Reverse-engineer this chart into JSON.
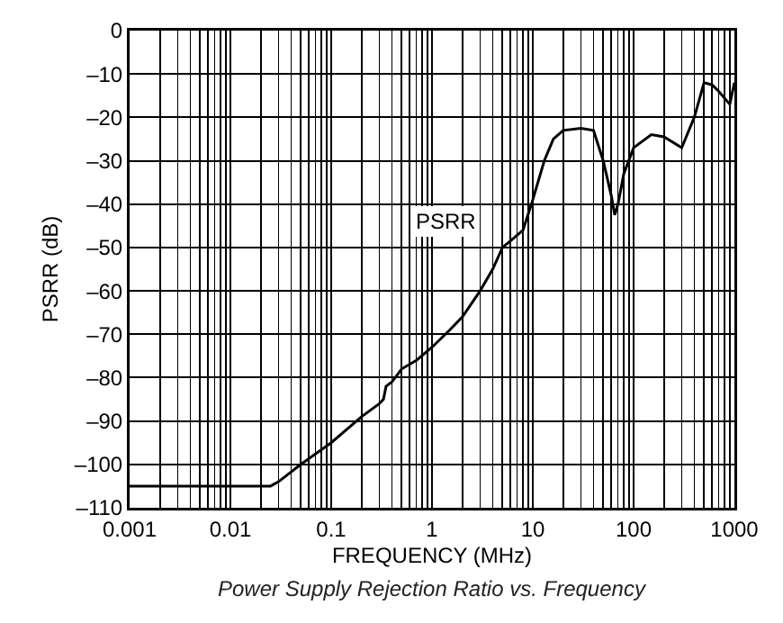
{
  "chart_data": {
    "type": "line",
    "xlabel": "FREQUENCY (MHz)",
    "ylabel": "PSRR (dB)",
    "annotations": [
      "Power Supply Rejection Ratio vs. Frequency"
    ],
    "x": [
      0.001,
      0.005,
      0.025,
      0.03,
      0.05,
      0.1,
      0.2,
      0.3,
      0.33,
      0.35,
      0.4,
      0.5,
      0.7,
      1,
      1.5,
      2,
      3,
      4,
      5,
      6,
      8,
      10,
      13,
      16,
      20,
      30,
      40,
      50,
      60,
      65,
      70,
      80,
      100,
      150,
      200,
      300,
      400,
      500,
      600,
      700,
      900,
      1000
    ],
    "series": [
      {
        "name": "PSRR",
        "color": "#000000",
        "values": [
          -105,
          -105,
          -105,
          -104,
          -100,
          -95,
          -89,
          -86,
          -85,
          -82,
          -81,
          -78,
          -76,
          -73,
          -69,
          -66,
          -60,
          -55,
          -50,
          -48.5,
          -46,
          -39,
          -30,
          -25,
          -23,
          -22.5,
          -23,
          -30,
          -38,
          -42.5,
          -40,
          -33,
          -27,
          -24,
          -24.5,
          -27,
          -20,
          -12,
          -12.5,
          -14,
          -17,
          -12
        ]
      }
    ],
    "xlim": [
      0.001,
      1000
    ],
    "xticks": [
      0.001,
      0.01,
      0.1,
      1,
      10,
      100,
      1000
    ],
    "ylim": [
      -110,
      0
    ],
    "yticks": [
      0,
      {
        "value": -10,
        "label": "–10"
      },
      {
        "value": -20,
        "label": "–20"
      },
      {
        "value": -30,
        "label": "–30"
      },
      {
        "value": -40,
        "label": "–40"
      },
      {
        "value": -50,
        "label": "–50"
      },
      {
        "value": -60,
        "label": "–60"
      },
      {
        "value": -70,
        "label": "–70"
      },
      {
        "value": -80,
        "label": "–80"
      },
      {
        "value": -90,
        "label": "–90"
      },
      {
        "value": -100,
        "label": "–100"
      },
      {
        "value": -110,
        "label": "–110"
      }
    ],
    "log": "x",
    "grid": true,
    "legend": false,
    "marker": "none",
    "line_style": "solid"
  }
}
